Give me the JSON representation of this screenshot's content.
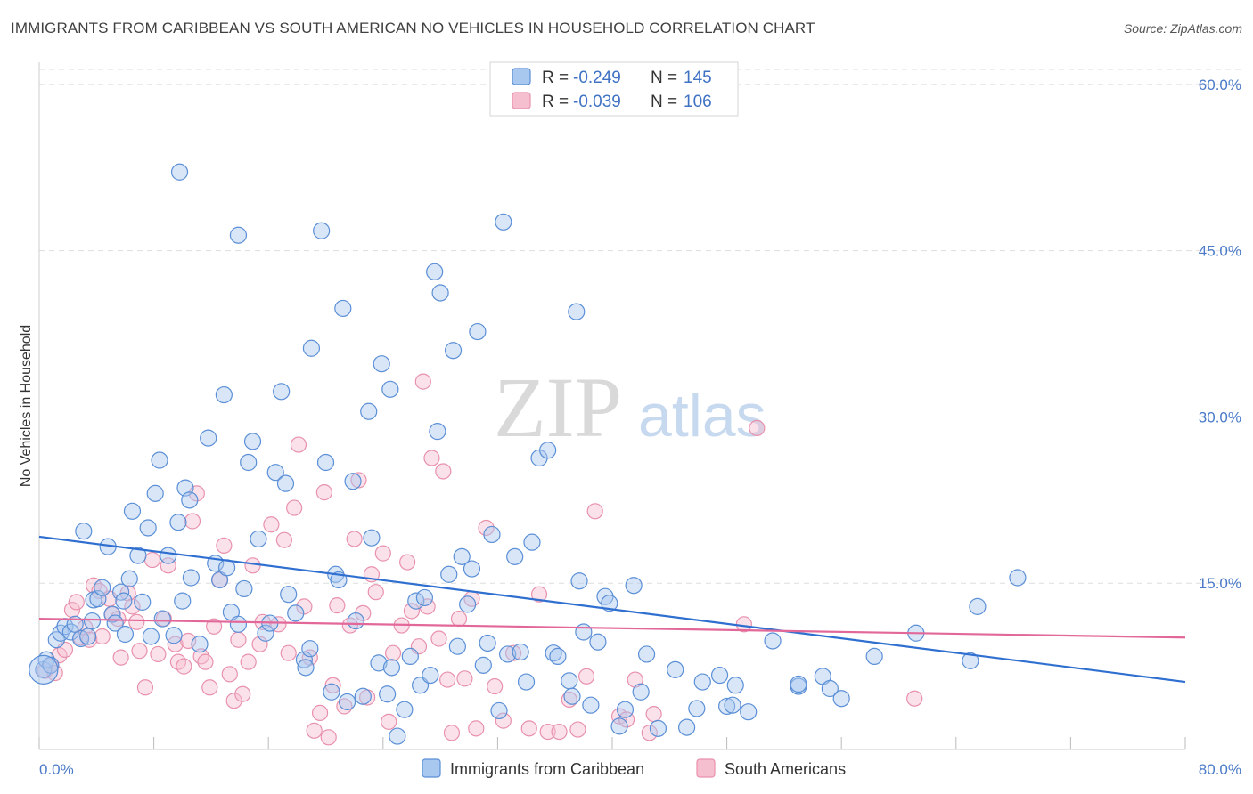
{
  "title": "IMMIGRANTS FROM CARIBBEAN VS SOUTH AMERICAN NO VEHICLES IN HOUSEHOLD CORRELATION CHART",
  "source": "Source: ZipAtlas.com",
  "watermark": {
    "zip": "ZIP",
    "atlas": "atlas"
  },
  "colors": {
    "blue_fill": "#a9c8ef",
    "blue_stroke": "#5b8fd6",
    "blue_line": "#2f6fd0",
    "pink_fill": "#f6bfd0",
    "pink_stroke": "#e891ad",
    "pink_line": "#e2689a",
    "grid": "#dddddd",
    "tick_text": "#4a7ac8"
  },
  "legend": [
    {
      "r_label": "R =",
      "r_value": "-0.249",
      "n_label": "N =",
      "n_value": "145"
    },
    {
      "r_label": "R =",
      "r_value": "-0.039",
      "n_label": "N =",
      "n_value": "106"
    }
  ],
  "chart_data": {
    "type": "scatter",
    "title": "IMMIGRANTS FROM CARIBBEAN VS SOUTH AMERICAN NO VEHICLES IN HOUSEHOLD CORRELATION CHART",
    "xlabel": "",
    "ylabel": "No Vehicles in Household",
    "xlim": [
      0,
      80
    ],
    "ylim": [
      0,
      62
    ],
    "x_tick_labels": [
      "0.0%",
      "80.0%"
    ],
    "y_ticks": [
      15,
      30,
      45,
      60
    ],
    "y_tick_labels": [
      "15.0%",
      "30.0%",
      "45.0%",
      "60.0%"
    ],
    "grid": true,
    "legend_position": "top-center",
    "series": [
      {
        "name": "Immigrants from Caribbean",
        "R": -0.249,
        "N": 145,
        "trend": {
          "x": [
            0,
            80
          ],
          "y": [
            19.2,
            6.1
          ]
        },
        "points": [
          [
            0.3,
            7.2
          ],
          [
            0.5,
            8.1
          ],
          [
            0.8,
            7.6
          ],
          [
            1.2,
            9.9
          ],
          [
            1.5,
            10.5
          ],
          [
            1.8,
            11.1
          ],
          [
            2.2,
            10.6
          ],
          [
            2.5,
            11.3
          ],
          [
            2.9,
            10.0
          ],
          [
            3.1,
            19.7
          ],
          [
            3.4,
            10.2
          ],
          [
            3.7,
            11.6
          ],
          [
            3.8,
            13.5
          ],
          [
            4.1,
            13.6
          ],
          [
            4.4,
            14.6
          ],
          [
            4.8,
            18.3
          ],
          [
            5.1,
            12.2
          ],
          [
            5.3,
            11.4
          ],
          [
            5.7,
            14.2
          ],
          [
            5.9,
            13.4
          ],
          [
            6.0,
            10.4
          ],
          [
            6.3,
            15.4
          ],
          [
            6.5,
            21.5
          ],
          [
            6.9,
            17.5
          ],
          [
            7.2,
            13.3
          ],
          [
            7.6,
            20.0
          ],
          [
            7.8,
            10.2
          ],
          [
            8.1,
            23.1
          ],
          [
            8.4,
            26.1
          ],
          [
            8.6,
            11.8
          ],
          [
            9.0,
            17.5
          ],
          [
            9.4,
            10.3
          ],
          [
            9.7,
            20.5
          ],
          [
            10.2,
            23.6
          ],
          [
            10.5,
            22.5
          ],
          [
            10.6,
            15.5
          ],
          [
            9.8,
            52.1
          ],
          [
            10.0,
            13.4
          ],
          [
            11.2,
            9.5
          ],
          [
            11.8,
            28.1
          ],
          [
            12.3,
            16.8
          ],
          [
            12.6,
            15.3
          ],
          [
            12.9,
            32.0
          ],
          [
            13.1,
            16.4
          ],
          [
            13.4,
            12.4
          ],
          [
            13.9,
            11.3
          ],
          [
            14.3,
            14.5
          ],
          [
            13.9,
            46.4
          ],
          [
            14.6,
            25.9
          ],
          [
            14.9,
            27.8
          ],
          [
            15.3,
            19.0
          ],
          [
            15.8,
            10.5
          ],
          [
            16.1,
            11.4
          ],
          [
            16.5,
            25.0
          ],
          [
            16.9,
            32.3
          ],
          [
            17.2,
            24.0
          ],
          [
            17.4,
            14.0
          ],
          [
            17.9,
            12.3
          ],
          [
            18.5,
            8.1
          ],
          [
            18.6,
            7.4
          ],
          [
            18.9,
            9.1
          ],
          [
            19.0,
            36.2
          ],
          [
            19.7,
            46.8
          ],
          [
            20.0,
            25.9
          ],
          [
            20.4,
            5.2
          ],
          [
            20.7,
            15.8
          ],
          [
            20.9,
            15.3
          ],
          [
            21.2,
            39.8
          ],
          [
            21.5,
            4.3
          ],
          [
            21.9,
            24.2
          ],
          [
            22.1,
            11.6
          ],
          [
            22.6,
            4.8
          ],
          [
            23.0,
            30.5
          ],
          [
            23.2,
            19.1
          ],
          [
            23.7,
            7.8
          ],
          [
            23.9,
            34.8
          ],
          [
            24.3,
            5.0
          ],
          [
            24.5,
            32.5
          ],
          [
            24.6,
            7.4
          ],
          [
            25.0,
            1.2
          ],
          [
            25.5,
            3.6
          ],
          [
            25.9,
            8.4
          ],
          [
            26.3,
            13.4
          ],
          [
            26.6,
            5.8
          ],
          [
            26.9,
            13.7
          ],
          [
            27.3,
            6.7
          ],
          [
            27.6,
            43.1
          ],
          [
            27.8,
            28.7
          ],
          [
            28.0,
            41.2
          ],
          [
            28.6,
            15.8
          ],
          [
            28.9,
            36.0
          ],
          [
            29.2,
            9.3
          ],
          [
            29.5,
            17.4
          ],
          [
            29.9,
            13.1
          ],
          [
            30.2,
            16.3
          ],
          [
            30.6,
            37.7
          ],
          [
            31.0,
            7.6
          ],
          [
            31.3,
            9.6
          ],
          [
            31.6,
            19.4
          ],
          [
            32.1,
            3.5
          ],
          [
            32.4,
            47.6
          ],
          [
            32.7,
            8.6
          ],
          [
            33.2,
            17.4
          ],
          [
            33.6,
            8.8
          ],
          [
            34.0,
            6.1
          ],
          [
            34.4,
            18.7
          ],
          [
            34.9,
            26.3
          ],
          [
            35.5,
            27.0
          ],
          [
            35.9,
            8.7
          ],
          [
            36.2,
            8.4
          ],
          [
            37.0,
            6.2
          ],
          [
            37.2,
            4.8
          ],
          [
            37.5,
            39.5
          ],
          [
            37.7,
            15.2
          ],
          [
            38.0,
            10.6
          ],
          [
            38.5,
            4.0
          ],
          [
            39.0,
            9.7
          ],
          [
            39.5,
            13.8
          ],
          [
            39.8,
            13.2
          ],
          [
            40.5,
            2.1
          ],
          [
            40.9,
            3.6
          ],
          [
            41.5,
            14.8
          ],
          [
            42.0,
            5.2
          ],
          [
            42.4,
            8.6
          ],
          [
            43.2,
            1.9
          ],
          [
            44.4,
            7.2
          ],
          [
            45.2,
            2.0
          ],
          [
            45.9,
            3.7
          ],
          [
            46.3,
            6.1
          ],
          [
            47.5,
            6.7
          ],
          [
            48.0,
            3.9
          ],
          [
            48.4,
            4.0
          ],
          [
            48.6,
            5.8
          ],
          [
            49.5,
            3.4
          ],
          [
            51.2,
            9.8
          ],
          [
            53.0,
            5.7
          ],
          [
            54.7,
            6.6
          ],
          [
            55.2,
            5.5
          ],
          [
            56.0,
            4.6
          ],
          [
            58.3,
            8.4
          ],
          [
            61.2,
            10.5
          ],
          [
            65.0,
            8.0
          ],
          [
            65.5,
            12.9
          ],
          [
            68.3,
            15.5
          ],
          [
            53.0,
            5.9
          ]
        ]
      },
      {
        "name": "South Americans",
        "R": -0.039,
        "N": 106,
        "trend": {
          "x": [
            0,
            80
          ],
          "y": [
            11.8,
            10.1
          ]
        },
        "points": [
          [
            0.4,
            7.1
          ],
          [
            0.8,
            7.6
          ],
          [
            1.1,
            6.9
          ],
          [
            1.4,
            8.5
          ],
          [
            1.8,
            9.0
          ],
          [
            2.3,
            12.6
          ],
          [
            2.6,
            13.3
          ],
          [
            2.9,
            10.1
          ],
          [
            3.2,
            11.0
          ],
          [
            3.5,
            9.9
          ],
          [
            3.8,
            14.8
          ],
          [
            4.2,
            14.3
          ],
          [
            4.4,
            10.2
          ],
          [
            4.9,
            13.6
          ],
          [
            5.1,
            12.2
          ],
          [
            5.5,
            11.8
          ],
          [
            5.7,
            8.3
          ],
          [
            6.2,
            14.1
          ],
          [
            6.5,
            12.9
          ],
          [
            6.8,
            11.5
          ],
          [
            7.0,
            8.9
          ],
          [
            7.4,
            5.6
          ],
          [
            7.9,
            17.1
          ],
          [
            8.3,
            8.6
          ],
          [
            8.7,
            11.8
          ],
          [
            9.0,
            16.6
          ],
          [
            9.5,
            9.5
          ],
          [
            9.7,
            7.9
          ],
          [
            10.1,
            7.5
          ],
          [
            10.4,
            9.8
          ],
          [
            10.7,
            20.6
          ],
          [
            11.0,
            23.1
          ],
          [
            11.3,
            8.4
          ],
          [
            11.6,
            7.9
          ],
          [
            11.9,
            5.6
          ],
          [
            12.2,
            11.1
          ],
          [
            12.6,
            15.3
          ],
          [
            12.9,
            18.4
          ],
          [
            13.3,
            6.8
          ],
          [
            13.6,
            4.4
          ],
          [
            13.9,
            9.9
          ],
          [
            14.2,
            5.0
          ],
          [
            14.6,
            7.9
          ],
          [
            14.9,
            16.6
          ],
          [
            15.4,
            9.5
          ],
          [
            15.6,
            11.5
          ],
          [
            16.2,
            20.3
          ],
          [
            16.7,
            11.3
          ],
          [
            17.1,
            18.9
          ],
          [
            17.4,
            8.7
          ],
          [
            17.8,
            21.8
          ],
          [
            18.1,
            27.5
          ],
          [
            18.5,
            12.9
          ],
          [
            18.9,
            8.3
          ],
          [
            19.2,
            1.7
          ],
          [
            19.6,
            3.3
          ],
          [
            19.9,
            23.2
          ],
          [
            20.2,
            1.1
          ],
          [
            20.5,
            5.8
          ],
          [
            20.8,
            13.0
          ],
          [
            21.3,
            3.9
          ],
          [
            21.7,
            11.2
          ],
          [
            22.0,
            19.0
          ],
          [
            22.3,
            24.3
          ],
          [
            22.6,
            12.3
          ],
          [
            22.9,
            4.7
          ],
          [
            23.2,
            15.8
          ],
          [
            23.5,
            14.2
          ],
          [
            24.0,
            17.7
          ],
          [
            24.4,
            2.5
          ],
          [
            24.7,
            8.7
          ],
          [
            25.3,
            11.2
          ],
          [
            25.7,
            16.9
          ],
          [
            26.0,
            12.5
          ],
          [
            26.5,
            9.3
          ],
          [
            26.8,
            33.2
          ],
          [
            27.1,
            12.9
          ],
          [
            27.4,
            26.3
          ],
          [
            27.9,
            10.0
          ],
          [
            28.2,
            25.1
          ],
          [
            28.5,
            6.3
          ],
          [
            28.8,
            1.5
          ],
          [
            29.3,
            11.8
          ],
          [
            29.7,
            6.4
          ],
          [
            30.2,
            13.6
          ],
          [
            30.5,
            1.9
          ],
          [
            31.2,
            20.0
          ],
          [
            31.8,
            5.7
          ],
          [
            32.4,
            2.6
          ],
          [
            33.1,
            8.7
          ],
          [
            34.2,
            1.9
          ],
          [
            34.9,
            14.0
          ],
          [
            35.5,
            1.6
          ],
          [
            36.3,
            1.6
          ],
          [
            37.0,
            4.5
          ],
          [
            37.6,
            1.8
          ],
          [
            38.2,
            6.6
          ],
          [
            38.8,
            21.5
          ],
          [
            40.5,
            3.0
          ],
          [
            41.0,
            2.7
          ],
          [
            41.6,
            6.3
          ],
          [
            42.6,
            1.5
          ],
          [
            42.9,
            3.2
          ],
          [
            49.2,
            11.3
          ],
          [
            50.1,
            29.0
          ],
          [
            61.1,
            4.6
          ]
        ]
      }
    ]
  },
  "bottom_legend": [
    {
      "label": "Immigrants from Caribbean"
    },
    {
      "label": "South Americans"
    }
  ]
}
